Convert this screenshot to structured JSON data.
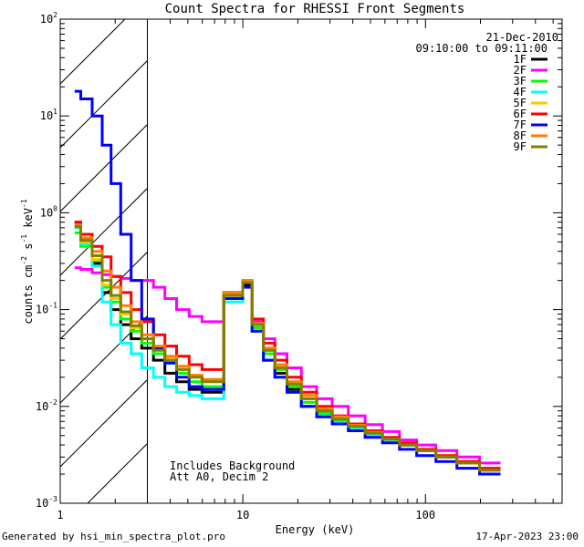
{
  "chart_data": {
    "type": "line",
    "title": "Count Spectra for RHESSI Front Segments",
    "xlabel": "Energy (keV)",
    "ylabel_parts": [
      "counts cm",
      "-2",
      " s",
      "-1",
      " keV",
      "-1"
    ],
    "xscale": "log",
    "yscale": "log",
    "xlim": [
      1,
      560
    ],
    "ylim": [
      0.001,
      100
    ],
    "x_ticks": [
      {
        "value": 1,
        "label": "1"
      },
      {
        "value": 10,
        "label": "10"
      },
      {
        "value": 100,
        "label": "100"
      }
    ],
    "y_ticks": [
      {
        "value": 0.001,
        "mant": "10",
        "exp": "-3"
      },
      {
        "value": 0.01,
        "mant": "10",
        "exp": "-2"
      },
      {
        "value": 0.1,
        "mant": "10",
        "exp": "-1"
      },
      {
        "value": 1,
        "mant": "10",
        "exp": "0"
      },
      {
        "value": 10,
        "mant": "10",
        "exp": "1"
      },
      {
        "value": 100,
        "mant": "10",
        "exp": "2"
      }
    ],
    "header": {
      "date": "21-Dec-2010",
      "time_range": "09:10:00 to 09:11:00"
    },
    "annotations": [
      "Includes Background",
      "Att A0, Decim 2"
    ],
    "shaded_region_kev": [
      1,
      3
    ],
    "series": [
      {
        "name": "1F",
        "color": "#000000",
        "y": [
          0.8,
          0.5,
          0.3,
          0.15,
          0.1,
          0.07,
          0.05,
          0.04,
          0.03,
          0.022,
          0.018,
          0.015,
          0.014,
          0.13,
          0.18,
          0.06,
          0.03,
          0.022,
          0.015,
          0.01,
          0.008,
          0.007,
          0.006,
          0.0052,
          0.0045,
          0.004,
          0.0035,
          0.003,
          0.0026,
          0.0022
        ]
      },
      {
        "name": "2F",
        "color": "#ff00ff",
        "y": [
          0.27,
          0.26,
          0.24,
          0.23,
          0.22,
          0.21,
          0.2,
          0.2,
          0.17,
          0.13,
          0.1,
          0.085,
          0.075,
          0.15,
          0.2,
          0.075,
          0.05,
          0.035,
          0.025,
          0.016,
          0.012,
          0.01,
          0.008,
          0.0065,
          0.0055,
          0.0045,
          0.004,
          0.0035,
          0.003,
          0.0026
        ]
      },
      {
        "name": "3F",
        "color": "#00ff00",
        "y": [
          0.62,
          0.45,
          0.32,
          0.17,
          0.12,
          0.08,
          0.06,
          0.045,
          0.035,
          0.028,
          0.022,
          0.018,
          0.016,
          0.14,
          0.19,
          0.065,
          0.035,
          0.024,
          0.016,
          0.011,
          0.0085,
          0.0072,
          0.006,
          0.0052,
          0.0045,
          0.004,
          0.0035,
          0.003,
          0.0026,
          0.0022
        ]
      },
      {
        "name": "4F",
        "color": "#00ffff",
        "y": [
          0.7,
          0.48,
          0.28,
          0.12,
          0.07,
          0.045,
          0.035,
          0.025,
          0.02,
          0.016,
          0.014,
          0.013,
          0.012,
          0.12,
          0.2,
          0.06,
          0.03,
          0.02,
          0.014,
          0.01,
          0.008,
          0.0068,
          0.0058,
          0.005,
          0.0045,
          0.004,
          0.0035,
          0.003,
          0.0026,
          0.0022
        ]
      },
      {
        "name": "5F",
        "color": "#ffc800",
        "y": [
          0.72,
          0.5,
          0.33,
          0.18,
          0.13,
          0.09,
          0.065,
          0.05,
          0.04,
          0.032,
          0.026,
          0.021,
          0.019,
          0.15,
          0.19,
          0.07,
          0.038,
          0.026,
          0.017,
          0.012,
          0.009,
          0.0075,
          0.0062,
          0.0054,
          0.0047,
          0.0041,
          0.0036,
          0.0031,
          0.0027,
          0.0023
        ]
      },
      {
        "name": "6F",
        "color": "#ff0000",
        "y": [
          0.8,
          0.6,
          0.45,
          0.35,
          0.22,
          0.15,
          0.1,
          0.075,
          0.055,
          0.042,
          0.033,
          0.027,
          0.024,
          0.15,
          0.19,
          0.08,
          0.045,
          0.03,
          0.02,
          0.014,
          0.01,
          0.008,
          0.0066,
          0.0056,
          0.0048,
          0.0042,
          0.0036,
          0.0031,
          0.0027,
          0.0023
        ]
      },
      {
        "name": "7F",
        "color": "#0000ff",
        "y": [
          18,
          15,
          10,
          5,
          2,
          0.6,
          0.2,
          0.08,
          0.04,
          0.028,
          0.02,
          0.016,
          0.015,
          0.13,
          0.17,
          0.06,
          0.03,
          0.02,
          0.014,
          0.01,
          0.0078,
          0.0066,
          0.0056,
          0.0048,
          0.0042,
          0.0036,
          0.0031,
          0.0027,
          0.0023,
          0.002
        ]
      },
      {
        "name": "8F",
        "color": "#ff8000",
        "y": [
          0.75,
          0.55,
          0.4,
          0.25,
          0.17,
          0.11,
          0.075,
          0.055,
          0.042,
          0.033,
          0.026,
          0.021,
          0.019,
          0.15,
          0.2,
          0.072,
          0.04,
          0.027,
          0.018,
          0.013,
          0.0095,
          0.0078,
          0.0064,
          0.0054,
          0.0046,
          0.004,
          0.0035,
          0.003,
          0.0026,
          0.0022
        ]
      },
      {
        "name": "9F",
        "color": "#808000",
        "y": [
          0.72,
          0.52,
          0.36,
          0.2,
          0.14,
          0.095,
          0.068,
          0.05,
          0.038,
          0.03,
          0.024,
          0.02,
          0.018,
          0.14,
          0.19,
          0.07,
          0.038,
          0.025,
          0.017,
          0.012,
          0.009,
          0.0074,
          0.0062,
          0.0053,
          0.0046,
          0.004,
          0.0035,
          0.003,
          0.0026,
          0.0022
        ]
      }
    ],
    "x_energies": [
      1.2,
      1.4,
      1.6,
      1.8,
      2.0,
      2.3,
      2.6,
      3.0,
      3.5,
      4.0,
      4.7,
      5.5,
      6.5,
      9.5,
      10.5,
      12.0,
      14.0,
      16.0,
      19.0,
      23.0,
      28.0,
      34.0,
      42.0,
      52.0,
      65.0,
      80.0,
      100.0,
      130.0,
      170.0,
      230.0
    ]
  },
  "footer": {
    "left": "Generated by hsi_min_spectra_plot.pro",
    "right": "17-Apr-2023 23:00"
  }
}
